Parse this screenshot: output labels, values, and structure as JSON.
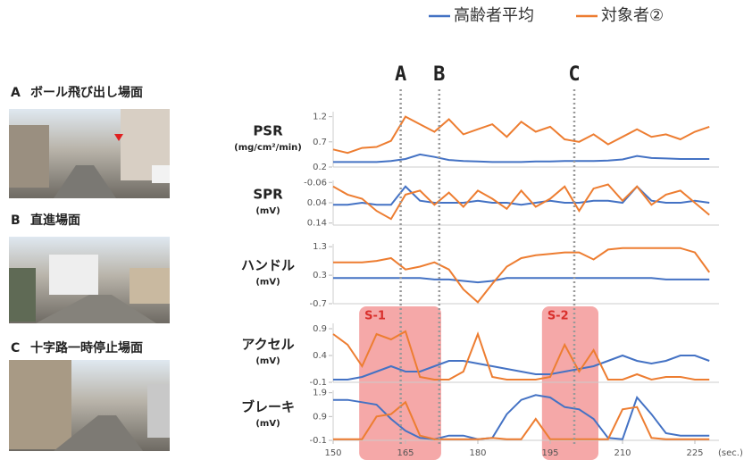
{
  "scenes": [
    {
      "letter": "A",
      "label": "ボール飛び出し場面"
    },
    {
      "letter": "B",
      "label": "直進場面"
    },
    {
      "letter": "C",
      "label": "十字路一時停止場面"
    }
  ],
  "chart_data": {
    "type": "line",
    "x": [
      150,
      153,
      156,
      159,
      162,
      165,
      168,
      171,
      174,
      177,
      180,
      183,
      186,
      189,
      192,
      195,
      198,
      201,
      204,
      207,
      210,
      213,
      216,
      219,
      222,
      225,
      228
    ],
    "xlim": [
      150,
      230
    ],
    "xticks": [
      150,
      165,
      180,
      195,
      210,
      225
    ],
    "x_unit": "(sec.)",
    "series": [
      {
        "name": "高齢者平均",
        "color": "#4472c4"
      },
      {
        "name": "対象者②",
        "color": "#ed7d31"
      }
    ],
    "panels": [
      {
        "label": "PSR",
        "unit": "(mg/cm²/min)",
        "ylim": [
          0.2,
          1.3
        ],
        "yticks": [
          0.2,
          0.7,
          1.2
        ],
        "values": [
          [
            0.3,
            0.3,
            0.3,
            0.3,
            0.32,
            0.36,
            0.45,
            0.4,
            0.34,
            0.32,
            0.31,
            0.3,
            0.3,
            0.3,
            0.31,
            0.31,
            0.32,
            0.32,
            0.32,
            0.33,
            0.35,
            0.42,
            0.38,
            0.37,
            0.36,
            0.36,
            0.36
          ],
          [
            0.55,
            0.48,
            0.58,
            0.6,
            0.72,
            1.2,
            1.05,
            0.9,
            1.15,
            0.85,
            0.95,
            1.05,
            0.8,
            1.1,
            0.9,
            1.0,
            0.75,
            0.7,
            0.85,
            0.65,
            0.8,
            0.95,
            0.8,
            0.85,
            0.75,
            0.9,
            1.0
          ]
        ]
      },
      {
        "label": "SPR",
        "unit": "(mV)",
        "ylim": [
          0.15,
          -0.07
        ],
        "yticks": [
          -0.06,
          0.04,
          0.14
        ],
        "values": [
          [
            0.05,
            0.05,
            0.04,
            0.05,
            0.05,
            -0.04,
            0.03,
            0.04,
            0.04,
            0.04,
            0.03,
            0.04,
            0.04,
            0.05,
            0.04,
            0.03,
            0.04,
            0.04,
            0.03,
            0.03,
            0.04,
            -0.04,
            0.03,
            0.04,
            0.04,
            0.03,
            0.04
          ],
          [
            -0.04,
            0.0,
            0.02,
            0.08,
            0.12,
            0.0,
            -0.02,
            0.05,
            -0.01,
            0.06,
            -0.02,
            0.02,
            0.07,
            -0.02,
            0.06,
            0.02,
            -0.04,
            0.08,
            -0.03,
            -0.05,
            0.03,
            -0.04,
            0.05,
            0.0,
            -0.02,
            0.04,
            0.1
          ]
        ]
      },
      {
        "label": "ハンドル",
        "unit": "(mV)",
        "ylim": [
          -0.7,
          1.4
        ],
        "yticks": [
          -0.7,
          0.3,
          1.3
        ],
        "values": [
          [
            0.2,
            0.2,
            0.2,
            0.2,
            0.2,
            0.2,
            0.2,
            0.15,
            0.15,
            0.1,
            0.05,
            0.1,
            0.2,
            0.2,
            0.2,
            0.2,
            0.2,
            0.2,
            0.2,
            0.2,
            0.2,
            0.2,
            0.2,
            0.15,
            0.15,
            0.15,
            0.15
          ],
          [
            0.75,
            0.75,
            0.75,
            0.8,
            0.9,
            0.5,
            0.6,
            0.75,
            0.5,
            -0.2,
            -0.65,
            0.0,
            0.6,
            0.9,
            1.0,
            1.05,
            1.1,
            1.1,
            0.85,
            1.2,
            1.25,
            1.25,
            1.25,
            1.25,
            1.25,
            1.1,
            0.4
          ]
        ]
      },
      {
        "label": "アクセル",
        "unit": "(mV)",
        "ylim": [
          -0.1,
          1.0
        ],
        "yticks": [
          -0.1,
          0.4,
          0.9
        ],
        "values": [
          [
            -0.05,
            -0.05,
            0.0,
            0.1,
            0.2,
            0.1,
            0.1,
            0.2,
            0.3,
            0.3,
            0.25,
            0.2,
            0.15,
            0.1,
            0.05,
            0.05,
            0.1,
            0.15,
            0.2,
            0.3,
            0.4,
            0.3,
            0.25,
            0.3,
            0.4,
            0.4,
            0.3
          ],
          [
            0.8,
            0.6,
            0.2,
            0.8,
            0.7,
            0.85,
            0.0,
            -0.05,
            -0.05,
            0.1,
            0.8,
            0.0,
            -0.05,
            -0.05,
            -0.05,
            0.0,
            0.6,
            0.1,
            0.5,
            -0.05,
            -0.05,
            0.05,
            -0.05,
            0.0,
            0.0,
            -0.05,
            -0.05
          ]
        ]
      },
      {
        "label": "ブレーキ",
        "unit": "(mV)",
        "ylim": [
          -0.1,
          2.0
        ],
        "yticks": [
          -0.1,
          0.9,
          1.9
        ],
        "values": [
          [
            1.6,
            1.6,
            1.5,
            1.4,
            0.8,
            0.3,
            0.0,
            -0.05,
            0.1,
            0.1,
            -0.05,
            0.0,
            1.0,
            1.6,
            1.8,
            1.7,
            1.3,
            1.2,
            0.8,
            0.0,
            -0.05,
            1.7,
            1.0,
            0.2,
            0.1,
            0.1,
            0.1
          ],
          [
            -0.05,
            -0.05,
            -0.05,
            0.9,
            1.0,
            1.5,
            0.1,
            -0.05,
            -0.05,
            -0.05,
            -0.05,
            0.0,
            -0.05,
            -0.05,
            0.8,
            -0.05,
            -0.05,
            -0.05,
            -0.05,
            -0.05,
            1.2,
            1.3,
            0.0,
            -0.05,
            -0.05,
            -0.05,
            -0.05
          ]
        ]
      }
    ],
    "markers": [
      {
        "label": "A",
        "x": 164
      },
      {
        "label": "B",
        "x": 172
      },
      {
        "label": "C",
        "x": 200
      }
    ],
    "highlights": [
      {
        "label": "S-1",
        "xlim": [
          155.4,
          172.4
        ]
      },
      {
        "label": "S-2",
        "xlim": [
          193.3,
          205
        ]
      }
    ]
  }
}
